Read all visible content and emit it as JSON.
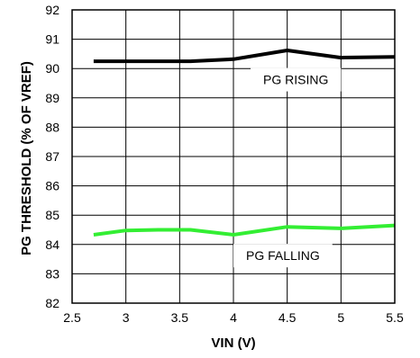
{
  "chart_data": {
    "type": "line",
    "xlabel": "VIN (V)",
    "ylabel": "PG THRESHOLD (% OF VREF)",
    "xlim": [
      2.5,
      5.5
    ],
    "ylim": [
      82,
      92
    ],
    "x_ticks": [
      "2.5",
      "3",
      "3.5",
      "4",
      "4.5",
      "5",
      "5.5"
    ],
    "y_ticks": [
      "82",
      "83",
      "84",
      "85",
      "86",
      "87",
      "88",
      "89",
      "90",
      "91",
      "92"
    ],
    "grid": true,
    "series": [
      {
        "name": "PG RISING",
        "color": "#000000",
        "x": [
          2.7,
          3.0,
          3.3,
          3.6,
          4.0,
          4.5,
          5.0,
          5.5
        ],
        "y": [
          90.25,
          90.25,
          90.25,
          90.25,
          90.32,
          90.62,
          90.37,
          90.4
        ]
      },
      {
        "name": "PG FALLING",
        "color": "#33ee33",
        "x": [
          2.7,
          3.0,
          3.3,
          3.6,
          4.0,
          4.5,
          5.0,
          5.5
        ],
        "y": [
          84.33,
          84.48,
          84.5,
          84.5,
          84.33,
          84.6,
          84.55,
          84.65
        ]
      }
    ]
  }
}
